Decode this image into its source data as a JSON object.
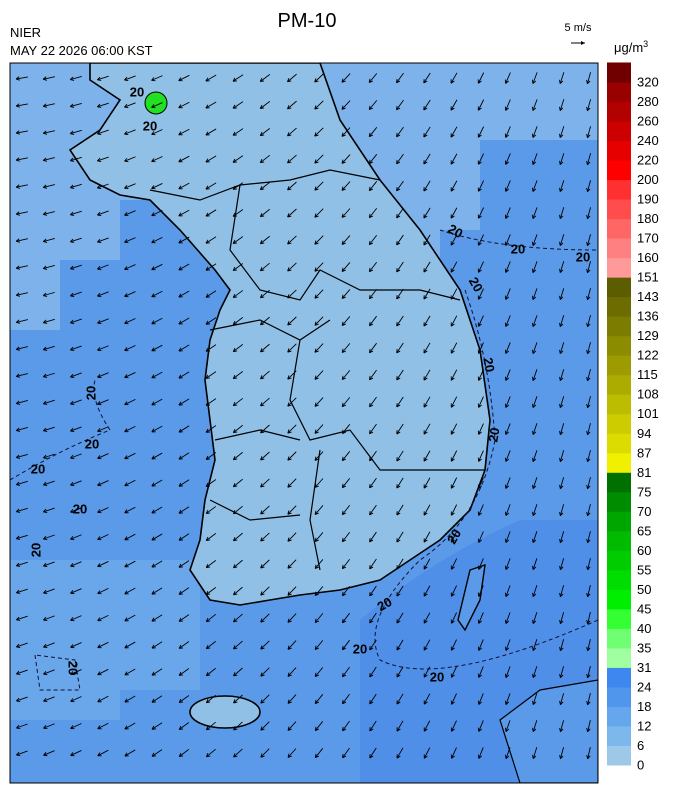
{
  "header": {
    "title": "PM-10",
    "source": "NIER",
    "datetime": "MAY 22 2026 06:00 KST"
  },
  "wind_reference": "5 m/s",
  "colorbar": {
    "unit": "μg/m",
    "unit_superscript": "3",
    "levels": [
      0,
      6,
      12,
      18,
      24,
      31,
      35,
      40,
      45,
      50,
      55,
      60,
      65,
      70,
      75,
      81,
      87,
      94,
      101,
      108,
      115,
      122,
      129,
      136,
      143,
      151,
      160,
      170,
      180,
      190,
      200,
      220,
      240,
      260,
      280,
      320
    ],
    "colors": [
      "#9dc8e8",
      "#7db8ec",
      "#66a6ec",
      "#5096ec",
      "#3d87ee",
      "#a0ffa0",
      "#70ff70",
      "#33ff33",
      "#00ee00",
      "#00dd00",
      "#00cc00",
      "#00bb00",
      "#00a600",
      "#008c00",
      "#007000",
      "#f0f000",
      "#dcdc00",
      "#cccc00",
      "#bcbc00",
      "#acac00",
      "#9c9c00",
      "#8c8c00",
      "#7c7c00",
      "#6c6c00",
      "#5c5c00",
      "#ff9a9a",
      "#ff8080",
      "#ff6666",
      "#ff4c4c",
      "#ff3030",
      "#ff0000",
      "#e60000",
      "#cc0000",
      "#b30000",
      "#990000",
      "#700000"
    ]
  },
  "contour_labels": [
    "20",
    "20",
    "20",
    "20",
    "20",
    "20",
    "20",
    "20",
    "20",
    "20",
    "20",
    "20",
    "20",
    "20",
    "20",
    "20",
    "20",
    "20"
  ]
}
